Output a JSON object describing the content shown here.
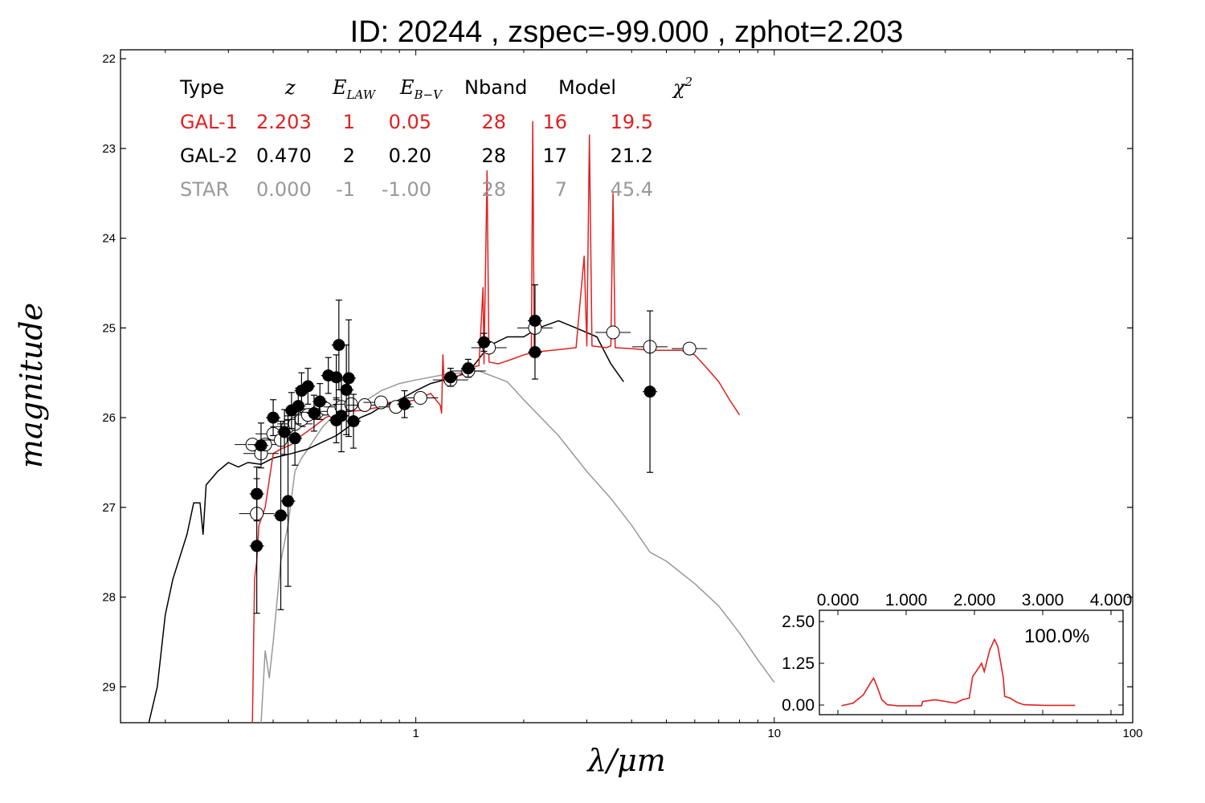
{
  "title": "ID:  20244 , zspec=-99.000 , zphot=2.203",
  "chart_data": {
    "type": "scatter",
    "xlabel": "λ/μm",
    "ylabel": "magnitude",
    "xscale": "log",
    "xlim": [
      0.15,
      100
    ],
    "ylim": [
      29.4,
      21.9
    ],
    "y_inverted": true,
    "grid": false,
    "x_ticks": [
      {
        "value": 1,
        "label": "1"
      },
      {
        "value": 10,
        "label": "10"
      },
      {
        "value": 100,
        "label": "100"
      }
    ],
    "y_ticks": [
      {
        "value": 22,
        "label": "22"
      },
      {
        "value": 23,
        "label": "23"
      },
      {
        "value": 24,
        "label": "24"
      },
      {
        "value": 25,
        "label": "25"
      },
      {
        "value": 26,
        "label": "26"
      },
      {
        "value": 27,
        "label": "27"
      },
      {
        "value": 28,
        "label": "28"
      },
      {
        "value": 29,
        "label": "29"
      }
    ],
    "fit_table": {
      "headers": [
        "Type",
        "z",
        "E_LAW",
        "E_B−V",
        "Nband",
        "Model",
        "χ2"
      ],
      "rows": [
        {
          "type": "GAL-1",
          "z": "2.203",
          "elaw": "1",
          "ebv": "0.05",
          "nband": "28",
          "model": "16",
          "chi2": "19.5",
          "color": "#e02020"
        },
        {
          "type": "GAL-2",
          "z": "0.470",
          "elaw": "2",
          "ebv": "0.20",
          "nband": "28",
          "model": "17",
          "chi2": "21.2",
          "color": "#000000"
        },
        {
          "type": "STAR",
          "z": "0.000",
          "elaw": "-1",
          "ebv": "-1.00",
          "nband": "28",
          "model": "7",
          "chi2": "45.4",
          "color": "#999999"
        }
      ]
    },
    "observed_points": [
      {
        "x": 0.36,
        "y": 26.85,
        "yerr": 0.3
      },
      {
        "x": 0.36,
        "y": 27.43,
        "yerr": 0.75
      },
      {
        "x": 0.37,
        "y": 26.31,
        "yerr": 0.25
      },
      {
        "x": 0.4,
        "y": 26.0,
        "yerr": 0.2
      },
      {
        "x": 0.42,
        "y": 27.09,
        "yerr": 1.05
      },
      {
        "x": 0.43,
        "y": 26.16,
        "yerr": 0.25
      },
      {
        "x": 0.44,
        "y": 26.93,
        "yerr": 0.95
      },
      {
        "x": 0.45,
        "y": 25.92,
        "yerr": 0.2
      },
      {
        "x": 0.46,
        "y": 26.23,
        "yerr": 0.3
      },
      {
        "x": 0.47,
        "y": 25.87,
        "yerr": 0.2
      },
      {
        "x": 0.48,
        "y": 25.7,
        "yerr": 0.2
      },
      {
        "x": 0.5,
        "y": 25.65,
        "yerr": 0.2
      },
      {
        "x": 0.52,
        "y": 25.95,
        "yerr": 0.2
      },
      {
        "x": 0.54,
        "y": 25.82,
        "yerr": 0.2
      },
      {
        "x": 0.57,
        "y": 25.53,
        "yerr": 0.2
      },
      {
        "x": 0.6,
        "y": 25.55,
        "yerr": 0.25
      },
      {
        "x": 0.6,
        "y": 26.03,
        "yerr": 0.25
      },
      {
        "x": 0.61,
        "y": 25.19,
        "yerr": 0.5
      },
      {
        "x": 0.62,
        "y": 25.98,
        "yerr": 0.4
      },
      {
        "x": 0.64,
        "y": 25.69,
        "yerr": 0.5
      },
      {
        "x": 0.65,
        "y": 25.56,
        "yerr": 0.65
      },
      {
        "x": 0.67,
        "y": 26.04,
        "yerr": 0.3
      },
      {
        "x": 0.93,
        "y": 25.85,
        "yerr": 0.15
      },
      {
        "x": 1.25,
        "y": 25.55,
        "yerr": 0.1
      },
      {
        "x": 1.4,
        "y": 25.45,
        "yerr": 0.1
      },
      {
        "x": 1.55,
        "y": 25.16,
        "yerr": 0.1
      },
      {
        "x": 2.15,
        "y": 24.92,
        "yerr": 0.4
      },
      {
        "x": 2.15,
        "y": 25.27,
        "yerr": 0.3
      },
      {
        "x": 4.5,
        "y": 25.71,
        "yerr": 0.9
      }
    ],
    "model_photometry": [
      {
        "x": 0.36,
        "y": 27.07
      },
      {
        "x": 0.35,
        "y": 26.3
      },
      {
        "x": 0.37,
        "y": 26.4
      },
      {
        "x": 0.38,
        "y": 26.3
      },
      {
        "x": 0.4,
        "y": 26.18
      },
      {
        "x": 0.42,
        "y": 26.25
      },
      {
        "x": 0.44,
        "y": 26.1
      },
      {
        "x": 0.46,
        "y": 26.07
      },
      {
        "x": 0.48,
        "y": 26.02
      },
      {
        "x": 0.5,
        "y": 25.97
      },
      {
        "x": 0.53,
        "y": 25.94
      },
      {
        "x": 0.56,
        "y": 25.9
      },
      {
        "x": 0.59,
        "y": 25.93
      },
      {
        "x": 0.62,
        "y": 25.88
      },
      {
        "x": 0.66,
        "y": 25.85
      },
      {
        "x": 0.72,
        "y": 25.86
      },
      {
        "x": 0.8,
        "y": 25.83
      },
      {
        "x": 0.88,
        "y": 25.88
      },
      {
        "x": 1.03,
        "y": 25.78
      },
      {
        "x": 1.25,
        "y": 25.58
      },
      {
        "x": 1.4,
        "y": 25.48
      },
      {
        "x": 1.6,
        "y": 25.22
      },
      {
        "x": 2.15,
        "y": 25.0
      },
      {
        "x": 3.55,
        "y": 25.05
      },
      {
        "x": 4.5,
        "y": 25.21
      },
      {
        "x": 5.8,
        "y": 25.23
      }
    ],
    "series": [
      {
        "color": "#e02020",
        "points": [
          [
            0.35,
            29.4
          ],
          [
            0.355,
            27.8
          ],
          [
            0.36,
            27.6
          ],
          [
            0.365,
            27.2
          ],
          [
            0.38,
            27.0
          ],
          [
            0.4,
            26.4
          ],
          [
            0.42,
            26.35
          ],
          [
            0.45,
            26.3
          ],
          [
            0.48,
            26.2
          ],
          [
            0.52,
            26.1
          ],
          [
            0.56,
            26.0
          ],
          [
            0.6,
            25.95
          ],
          [
            0.65,
            25.93
          ],
          [
            0.7,
            25.92
          ],
          [
            0.8,
            25.88
          ],
          [
            0.9,
            25.84
          ],
          [
            1.0,
            25.8
          ],
          [
            1.1,
            25.73
          ],
          [
            1.17,
            25.86
          ],
          [
            1.18,
            25.95
          ],
          [
            1.19,
            25.3
          ],
          [
            1.2,
            25.6
          ],
          [
            1.3,
            25.55
          ],
          [
            1.4,
            25.45
          ],
          [
            1.5,
            25.42
          ],
          [
            1.54,
            24.55
          ],
          [
            1.55,
            25.4
          ],
          [
            1.58,
            23.25
          ],
          [
            1.6,
            25.38
          ],
          [
            1.7,
            25.4
          ],
          [
            1.85,
            25.35
          ],
          [
            2.0,
            25.3
          ],
          [
            2.1,
            25.28
          ],
          [
            2.12,
            22.7
          ],
          [
            2.14,
            25.27
          ],
          [
            2.4,
            25.25
          ],
          [
            2.8,
            25.22
          ],
          [
            2.95,
            24.2
          ],
          [
            3.0,
            25.2
          ],
          [
            3.05,
            22.85
          ],
          [
            3.1,
            25.2
          ],
          [
            3.4,
            25.22
          ],
          [
            3.5,
            25.2
          ],
          [
            3.55,
            23.5
          ],
          [
            3.6,
            25.22
          ],
          [
            4.0,
            25.23
          ],
          [
            4.5,
            25.25
          ],
          [
            5.0,
            25.25
          ],
          [
            5.5,
            25.25
          ],
          [
            6.0,
            25.3
          ],
          [
            6.5,
            25.45
          ],
          [
            7.0,
            25.6
          ],
          [
            7.5,
            25.8
          ],
          [
            8.0,
            25.97
          ]
        ]
      },
      {
        "color": "#000000",
        "points": [
          [
            0.18,
            29.4
          ],
          [
            0.19,
            29.0
          ],
          [
            0.2,
            28.2
          ],
          [
            0.21,
            27.8
          ],
          [
            0.23,
            27.3
          ],
          [
            0.24,
            26.95
          ],
          [
            0.25,
            26.95
          ],
          [
            0.255,
            27.3
          ],
          [
            0.26,
            26.75
          ],
          [
            0.28,
            26.6
          ],
          [
            0.3,
            26.5
          ],
          [
            0.32,
            26.55
          ],
          [
            0.34,
            26.5
          ],
          [
            0.37,
            26.52
          ],
          [
            0.4,
            26.45
          ],
          [
            0.45,
            26.4
          ],
          [
            0.5,
            26.35
          ],
          [
            0.55,
            26.27
          ],
          [
            0.6,
            26.2
          ],
          [
            0.65,
            26.1
          ],
          [
            0.7,
            26.0
          ],
          [
            0.75,
            25.95
          ],
          [
            0.8,
            25.88
          ],
          [
            0.9,
            25.8
          ],
          [
            1.0,
            25.7
          ],
          [
            1.1,
            25.62
          ],
          [
            1.2,
            25.58
          ],
          [
            1.4,
            25.5
          ],
          [
            1.6,
            25.2
          ],
          [
            1.8,
            25.1
          ],
          [
            2.0,
            25.1
          ],
          [
            2.2,
            25.0
          ],
          [
            2.5,
            24.92
          ],
          [
            2.8,
            25.0
          ],
          [
            3.2,
            25.1
          ],
          [
            3.5,
            25.4
          ],
          [
            3.8,
            25.6
          ]
        ]
      },
      {
        "color": "#999999",
        "points": [
          [
            0.37,
            29.4
          ],
          [
            0.38,
            28.6
          ],
          [
            0.39,
            28.9
          ],
          [
            0.4,
            28.5
          ],
          [
            0.42,
            27.6
          ],
          [
            0.44,
            27.2
          ],
          [
            0.46,
            26.6
          ],
          [
            0.48,
            26.45
          ],
          [
            0.5,
            26.35
          ],
          [
            0.55,
            26.1
          ],
          [
            0.6,
            25.95
          ],
          [
            0.7,
            25.85
          ],
          [
            0.8,
            25.7
          ],
          [
            0.9,
            25.62
          ],
          [
            1.0,
            25.58
          ],
          [
            1.2,
            25.52
          ],
          [
            1.5,
            25.48
          ],
          [
            1.8,
            25.6
          ],
          [
            2.0,
            25.8
          ],
          [
            2.5,
            26.2
          ],
          [
            3.0,
            26.6
          ],
          [
            3.5,
            26.9
          ],
          [
            4.0,
            27.2
          ],
          [
            4.5,
            27.5
          ],
          [
            5.0,
            27.6
          ],
          [
            6.0,
            27.85
          ],
          [
            7.0,
            28.1
          ],
          [
            8.0,
            28.4
          ],
          [
            9.0,
            28.7
          ],
          [
            10.0,
            28.95
          ]
        ]
      }
    ],
    "inset": {
      "type": "line",
      "label": "100.0%",
      "color": "#e02020",
      "x_ticks": [
        "0.000",
        "1.000",
        "2.000",
        "3.000",
        "4.000"
      ],
      "y_ticks": [
        "0.00",
        "1.25",
        "2.50"
      ],
      "xlim": [
        0,
        4
      ],
      "ylim": [
        -0.25,
        2.9
      ],
      "points": [
        [
          0.03,
          0.02
        ],
        [
          0.2,
          0.1
        ],
        [
          0.35,
          0.35
        ],
        [
          0.45,
          0.7
        ],
        [
          0.5,
          0.85
        ],
        [
          0.55,
          0.6
        ],
        [
          0.62,
          0.2
        ],
        [
          0.7,
          0.05
        ],
        [
          0.85,
          0.02
        ],
        [
          1.2,
          0.02
        ],
        [
          1.22,
          0.15
        ],
        [
          1.4,
          0.2
        ],
        [
          1.55,
          0.15
        ],
        [
          1.7,
          0.1
        ],
        [
          1.8,
          0.2
        ],
        [
          1.9,
          0.25
        ],
        [
          1.95,
          0.9
        ],
        [
          2.05,
          1.2
        ],
        [
          2.08,
          1.3
        ],
        [
          2.12,
          1.05
        ],
        [
          2.2,
          1.7
        ],
        [
          2.27,
          2.02
        ],
        [
          2.32,
          1.8
        ],
        [
          2.4,
          0.85
        ],
        [
          2.42,
          0.3
        ],
        [
          2.5,
          0.25
        ],
        [
          2.6,
          0.12
        ],
        [
          2.7,
          0.05
        ],
        [
          3.0,
          0.03
        ],
        [
          3.45,
          0.03
        ]
      ]
    }
  }
}
